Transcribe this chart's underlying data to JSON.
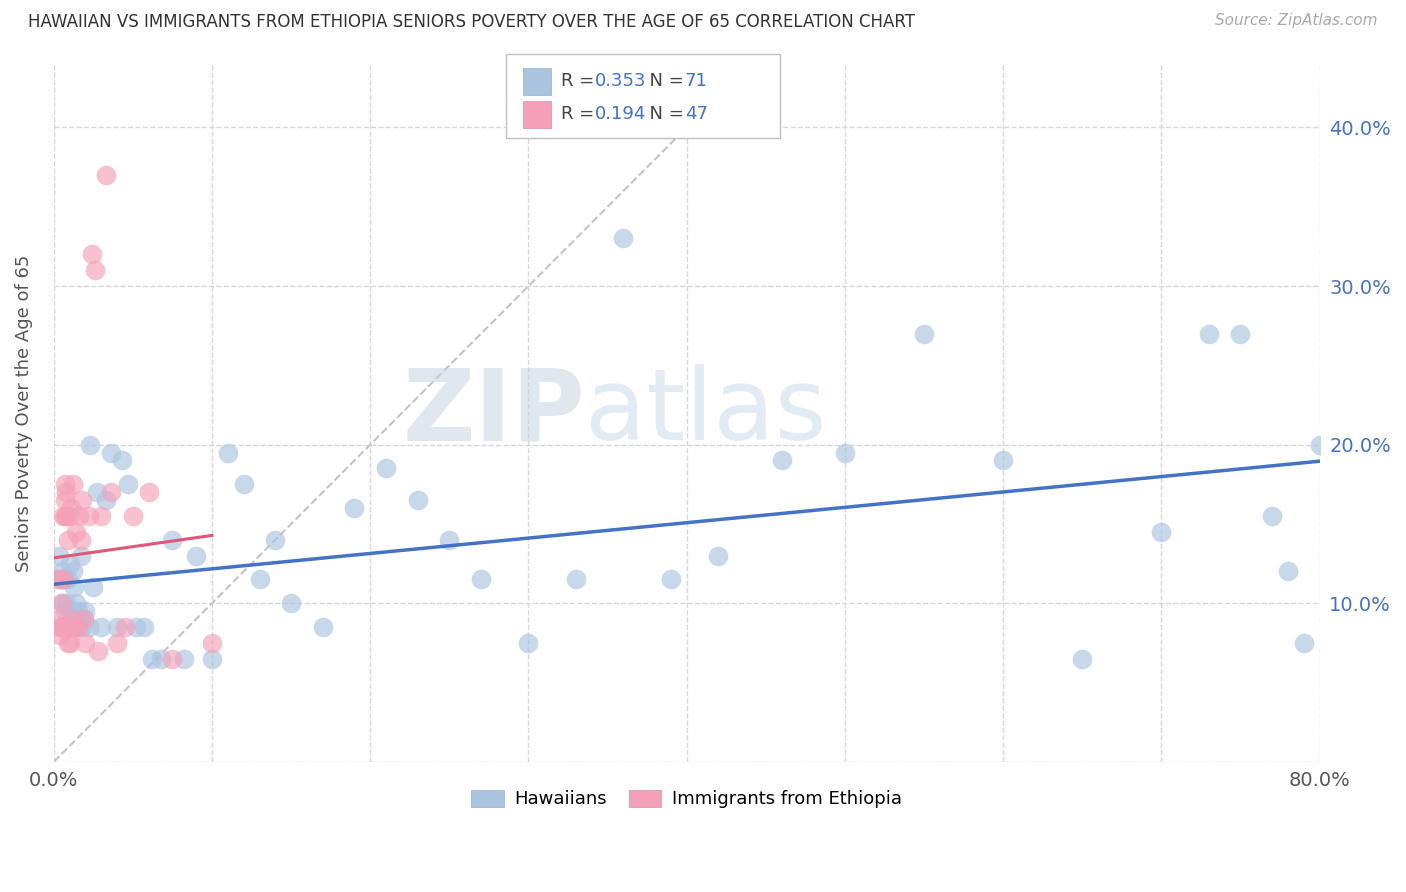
{
  "title": "HAWAIIAN VS IMMIGRANTS FROM ETHIOPIA SENIORS POVERTY OVER THE AGE OF 65 CORRELATION CHART",
  "source": "Source: ZipAtlas.com",
  "ylabel": "Seniors Poverty Over the Age of 65",
  "xlim": [
    0.0,
    0.8
  ],
  "ylim": [
    0.0,
    0.44
  ],
  "ytick_positions": [
    0.0,
    0.1,
    0.2,
    0.3,
    0.4
  ],
  "xtick_positions": [
    0.0,
    0.1,
    0.2,
    0.3,
    0.4,
    0.5,
    0.6,
    0.7,
    0.8
  ],
  "hawaiians_R": 0.353,
  "hawaiians_N": 71,
  "ethiopia_R": 0.194,
  "ethiopia_N": 47,
  "hawaiians_color": "#aac4e0",
  "ethiopia_color": "#f4a0b8",
  "hawaiians_line_color": "#4472c4",
  "ethiopia_line_color": "#e05878",
  "diagonal_color": "#c8c0cc",
  "watermark_zip": "ZIP",
  "watermark_atlas": "atlas",
  "hawaiians_x": [
    0.003,
    0.004,
    0.005,
    0.005,
    0.006,
    0.007,
    0.007,
    0.008,
    0.008,
    0.009,
    0.01,
    0.01,
    0.011,
    0.012,
    0.012,
    0.013,
    0.013,
    0.014,
    0.015,
    0.015,
    0.016,
    0.017,
    0.018,
    0.019,
    0.02,
    0.022,
    0.023,
    0.025,
    0.027,
    0.03,
    0.033,
    0.036,
    0.04,
    0.043,
    0.047,
    0.052,
    0.057,
    0.062,
    0.068,
    0.075,
    0.082,
    0.09,
    0.1,
    0.11,
    0.12,
    0.13,
    0.14,
    0.15,
    0.17,
    0.19,
    0.21,
    0.23,
    0.25,
    0.27,
    0.3,
    0.33,
    0.36,
    0.39,
    0.42,
    0.46,
    0.5,
    0.55,
    0.6,
    0.65,
    0.7,
    0.73,
    0.75,
    0.77,
    0.78,
    0.79,
    0.8
  ],
  "hawaiians_y": [
    0.13,
    0.115,
    0.12,
    0.1,
    0.115,
    0.095,
    0.115,
    0.1,
    0.085,
    0.115,
    0.085,
    0.125,
    0.095,
    0.09,
    0.12,
    0.085,
    0.11,
    0.1,
    0.085,
    0.095,
    0.09,
    0.13,
    0.085,
    0.09,
    0.095,
    0.085,
    0.2,
    0.11,
    0.17,
    0.085,
    0.165,
    0.195,
    0.085,
    0.19,
    0.175,
    0.085,
    0.085,
    0.065,
    0.065,
    0.14,
    0.065,
    0.13,
    0.065,
    0.195,
    0.175,
    0.115,
    0.14,
    0.1,
    0.085,
    0.16,
    0.185,
    0.165,
    0.14,
    0.115,
    0.075,
    0.115,
    0.33,
    0.115,
    0.13,
    0.19,
    0.195,
    0.27,
    0.19,
    0.065,
    0.145,
    0.27,
    0.27,
    0.155,
    0.12,
    0.075,
    0.2
  ],
  "ethiopia_x": [
    0.002,
    0.003,
    0.004,
    0.004,
    0.005,
    0.005,
    0.005,
    0.006,
    0.006,
    0.006,
    0.007,
    0.007,
    0.007,
    0.007,
    0.008,
    0.008,
    0.008,
    0.009,
    0.009,
    0.01,
    0.01,
    0.01,
    0.011,
    0.011,
    0.012,
    0.012,
    0.013,
    0.014,
    0.015,
    0.016,
    0.017,
    0.018,
    0.019,
    0.02,
    0.022,
    0.024,
    0.026,
    0.028,
    0.03,
    0.033,
    0.036,
    0.04,
    0.045,
    0.05,
    0.06,
    0.075,
    0.1
  ],
  "ethiopia_y": [
    0.115,
    0.09,
    0.085,
    0.08,
    0.085,
    0.1,
    0.115,
    0.085,
    0.115,
    0.155,
    0.085,
    0.155,
    0.165,
    0.175,
    0.085,
    0.155,
    0.17,
    0.075,
    0.14,
    0.075,
    0.085,
    0.155,
    0.085,
    0.16,
    0.09,
    0.175,
    0.085,
    0.145,
    0.085,
    0.155,
    0.14,
    0.165,
    0.09,
    0.075,
    0.155,
    0.32,
    0.31,
    0.07,
    0.155,
    0.37,
    0.17,
    0.075,
    0.085,
    0.155,
    0.17,
    0.065,
    0.075
  ]
}
